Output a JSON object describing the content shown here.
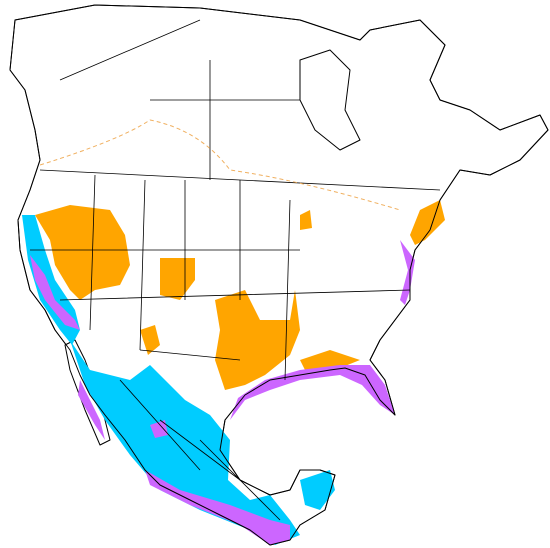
{
  "map": {
    "layers": [
      {
        "color": "#ffa500"
      },
      {
        "color": "#00ccff"
      },
      {
        "color": "#cc66ff"
      }
    ]
  }
}
